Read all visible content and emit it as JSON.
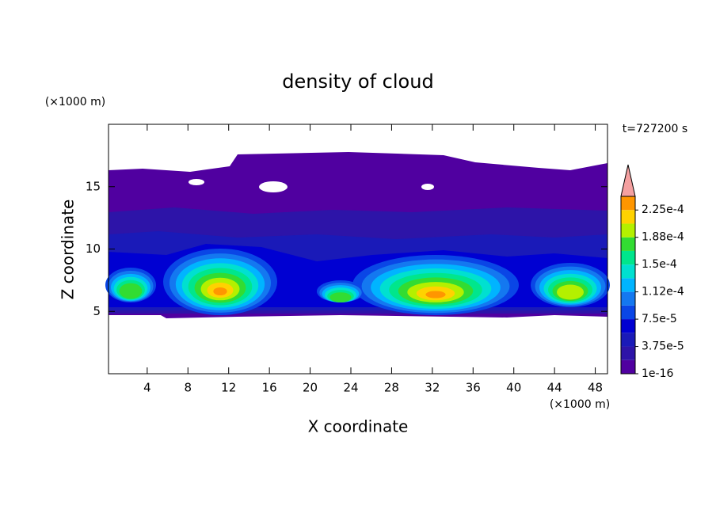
{
  "chart_data": {
    "type": "contour",
    "title": "density of cloud",
    "xlabel": "X coordinate",
    "ylabel": "Z coordinate",
    "xunit": "(×1000 m)",
    "yunit": "(×1000 m)",
    "time_label": "t=727200 s",
    "xlim": [
      0.2,
      49.2
    ],
    "xticks": [
      4,
      8,
      12,
      16,
      20,
      24,
      28,
      32,
      36,
      40,
      44,
      48
    ],
    "ylim": [
      0,
      20
    ],
    "yticks": [
      5,
      10,
      15
    ],
    "colorbar": {
      "clim": [
        1e-16,
        0.00024375
      ],
      "colors": [
        "#5000a0",
        "#2d14a8",
        "#1a1ab8",
        "#0000d2",
        "#0a46e6",
        "#1478f0",
        "#00b4ff",
        "#00e0d0",
        "#00e68c",
        "#32dc32",
        "#b4f000",
        "#ffd200",
        "#ff9600",
        "#ff3c00"
      ],
      "extend_color": "#f4a0a0",
      "ticks": [
        {
          "value": 1e-16,
          "label": "1e-16"
        },
        {
          "value": 3.75e-05,
          "label": "3.75e-5"
        },
        {
          "value": 7.5e-05,
          "label": "7.5e-5"
        },
        {
          "value": 0.0001125,
          "label": "1.12e-4"
        },
        {
          "value": 0.00015,
          "label": "1.5e-4"
        },
        {
          "value": 0.0001875,
          "label": "1.88e-4"
        },
        {
          "value": 0.000225,
          "label": "2.25e-4"
        }
      ]
    }
  }
}
